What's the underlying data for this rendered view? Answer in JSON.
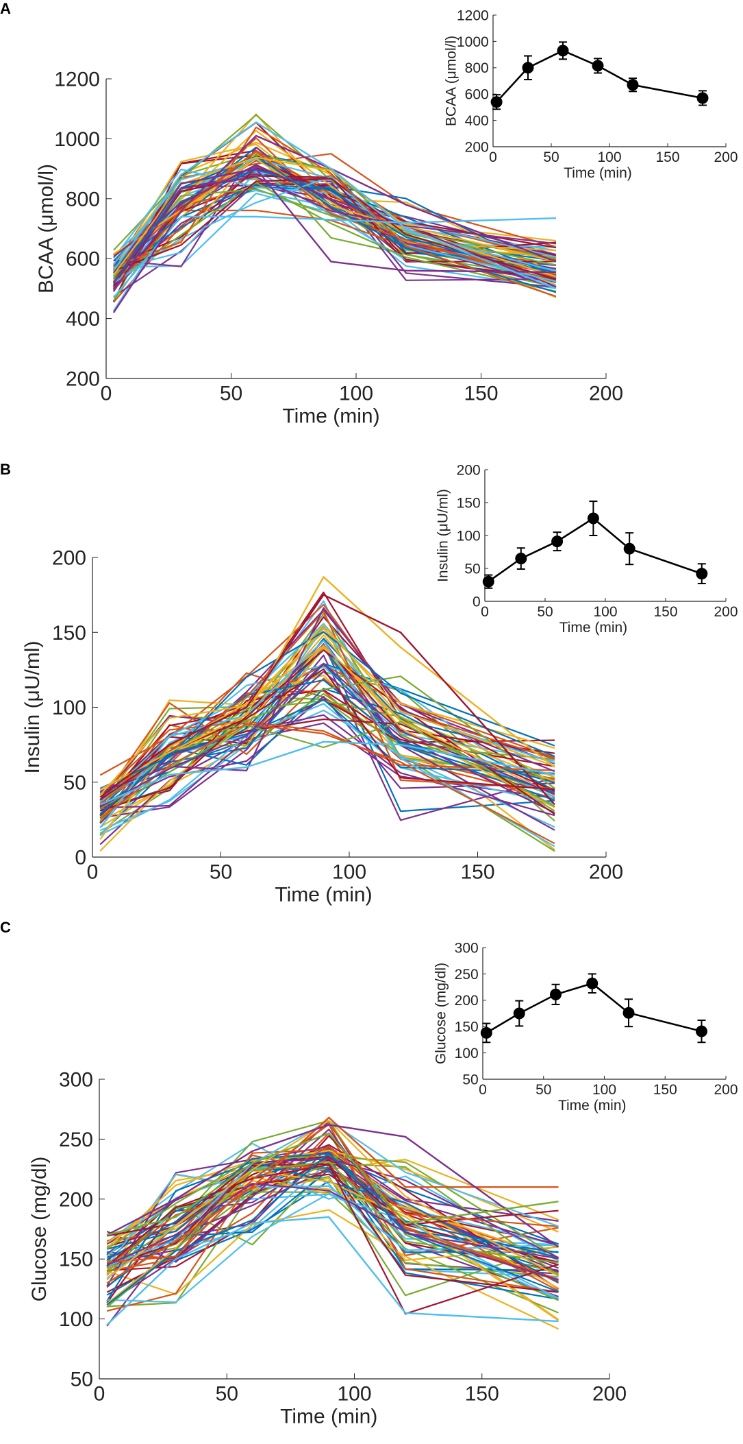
{
  "figure": {
    "panels": [
      "A",
      "B",
      "C"
    ]
  },
  "chart_data": [
    {
      "id": "A",
      "type": "line",
      "role": "main",
      "xlabel": "Time (min)",
      "ylabel": "BCAA (μmol/l)",
      "xlim": [
        0,
        200
      ],
      "ylim": [
        200,
        1200
      ],
      "xticks": [
        0,
        50,
        100,
        150,
        200
      ],
      "yticks": [
        200,
        400,
        600,
        800,
        1000,
        1200
      ],
      "x": [
        3,
        30,
        60,
        90,
        120,
        180
      ],
      "mean": [
        540,
        800,
        930,
        815,
        670,
        570
      ],
      "sd": [
        55,
        90,
        65,
        55,
        50,
        55
      ],
      "n_series": 60,
      "seed": 11,
      "highlight": [
        {
          "values": [
            470,
            740,
            740,
            730,
            720,
            735
          ],
          "color": "#4DBEEE"
        },
        {
          "values": [
            520,
            850,
            900,
            590,
            560,
            555
          ],
          "color": "#7E2F8E"
        },
        {
          "values": [
            420,
            760,
            1010,
            900,
            780,
            590
          ],
          "color": "#7E2F8E"
        },
        {
          "values": [
            560,
            880,
            1055,
            900,
            700,
            500
          ],
          "color": "#4DBEEE"
        }
      ]
    },
    {
      "id": "A-inset",
      "type": "line",
      "role": "inset",
      "xlabel": "Time (min)",
      "ylabel": "BCAA (μmol/l)",
      "xlim": [
        0,
        200
      ],
      "ylim": [
        200,
        1200
      ],
      "xticks": [
        0,
        50,
        100,
        150,
        200
      ],
      "yticks": [
        200,
        400,
        600,
        800,
        1000,
        1200
      ],
      "x": [
        3,
        30,
        60,
        90,
        120,
        180
      ],
      "values": [
        540,
        800,
        930,
        815,
        670,
        570
      ],
      "errors": [
        55,
        90,
        65,
        55,
        50,
        55
      ]
    },
    {
      "id": "B",
      "type": "line",
      "role": "main",
      "xlabel": "Time (min)",
      "ylabel": "Insulin (μU/ml)",
      "xlim": [
        0,
        200
      ],
      "ylim": [
        0,
        200
      ],
      "xticks": [
        0,
        50,
        100,
        150,
        200
      ],
      "yticks": [
        0,
        50,
        100,
        150,
        200
      ],
      "x": [
        3,
        30,
        60,
        90,
        120,
        180
      ],
      "mean": [
        30,
        65,
        91,
        126,
        80,
        42
      ],
      "sd": [
        10,
        16,
        14,
        26,
        24,
        15
      ],
      "n_series": 60,
      "seed": 23,
      "highlight": [
        {
          "values": [
            45,
            70,
            95,
            187,
            140,
            60
          ],
          "color": "#EDB120"
        },
        {
          "values": [
            40,
            75,
            100,
            175,
            150,
            35
          ],
          "color": "#A2142F"
        },
        {
          "values": [
            35,
            55,
            60,
            77,
            75,
            55
          ],
          "color": "#4DBEEE"
        }
      ]
    },
    {
      "id": "B-inset",
      "type": "line",
      "role": "inset",
      "xlabel": "Time (min)",
      "ylabel": "Insulin (μU/ml)",
      "xlim": [
        0,
        200
      ],
      "ylim": [
        0,
        200
      ],
      "xticks": [
        0,
        50,
        100,
        150,
        200
      ],
      "yticks": [
        0,
        50,
        100,
        150,
        200
      ],
      "x": [
        3,
        30,
        60,
        90,
        120,
        180
      ],
      "values": [
        30,
        65,
        91,
        126,
        80,
        42
      ],
      "errors": [
        10,
        16,
        14,
        26,
        24,
        15
      ]
    },
    {
      "id": "C",
      "type": "line",
      "role": "main",
      "xlabel": "Time (min)",
      "ylabel": "Glucose (mg/dl)",
      "xlim": [
        0,
        200
      ],
      "ylim": [
        50,
        300
      ],
      "xticks": [
        0,
        50,
        100,
        150,
        200
      ],
      "yticks": [
        50,
        100,
        150,
        200,
        250,
        300
      ],
      "x": [
        3,
        30,
        60,
        90,
        120,
        180
      ],
      "mean": [
        138,
        175,
        211,
        232,
        176,
        141
      ],
      "sd": [
        18,
        24,
        19,
        18,
        26,
        21
      ],
      "n_series": 60,
      "seed": 37,
      "highlight": [
        {
          "values": [
            130,
            165,
            210,
            268,
            210,
            210
          ],
          "color": "#D95319"
        },
        {
          "values": [
            170,
            200,
            240,
            262,
            252,
            160
          ],
          "color": "#7E2F8E"
        },
        {
          "values": [
            95,
            150,
            180,
            185,
            105,
            98
          ],
          "color": "#4DBEEE"
        },
        {
          "values": [
            170,
            185,
            230,
            255,
            180,
            198
          ],
          "color": "#77AC30"
        }
      ]
    },
    {
      "id": "C-inset",
      "type": "line",
      "role": "inset",
      "xlabel": "Time (min)",
      "ylabel": "Glucose (mg/dl)",
      "xlim": [
        0,
        200
      ],
      "ylim": [
        50,
        300
      ],
      "xticks": [
        0,
        50,
        100,
        150,
        200
      ],
      "yticks": [
        50,
        100,
        150,
        200,
        250,
        300
      ],
      "x": [
        3,
        30,
        60,
        90,
        120,
        180
      ],
      "values": [
        138,
        175,
        211,
        232,
        176,
        141
      ],
      "errors": [
        18,
        24,
        19,
        18,
        26,
        21
      ]
    }
  ],
  "palette": [
    "#0072BD",
    "#D95319",
    "#EDB120",
    "#7E2F8E",
    "#77AC30",
    "#4DBEEE",
    "#A2142F"
  ]
}
